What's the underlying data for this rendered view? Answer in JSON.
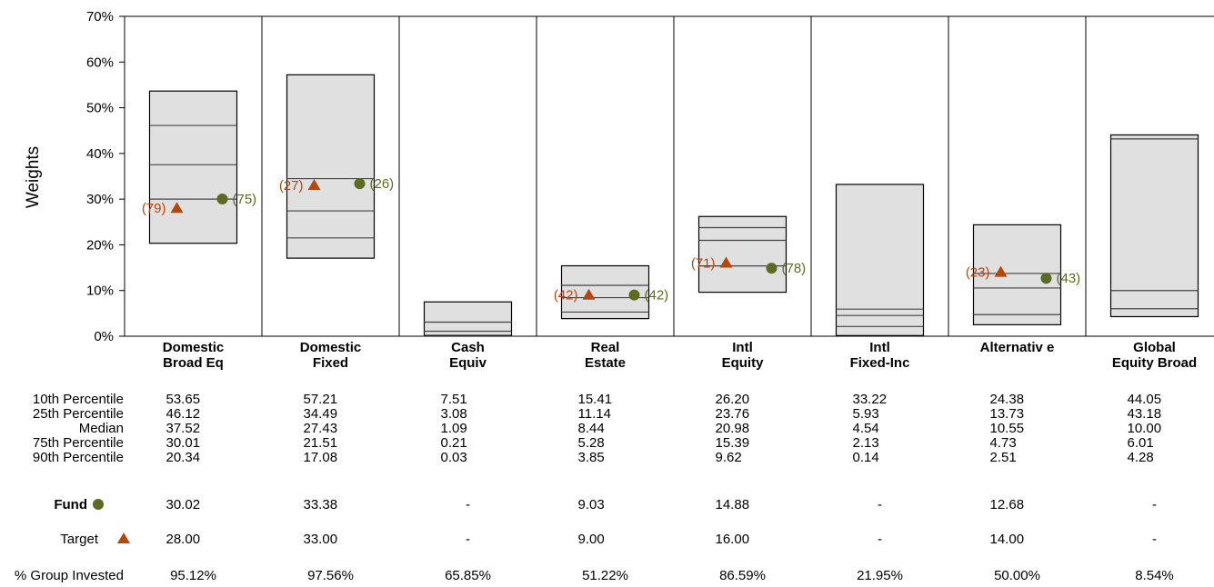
{
  "chart_data": {
    "type": "box",
    "ylabel": "Weights",
    "ylim": [
      0,
      70
    ],
    "ytick_step": 10,
    "ytick_suffix": "%",
    "grid": false,
    "categories": [
      {
        "line1": "Domestic",
        "line2": "Broad Eq"
      },
      {
        "line1": "Domestic",
        "line2": "Fixed"
      },
      {
        "line1": "Cash",
        "line2": "Equiv"
      },
      {
        "line1": "Real",
        "line2": "Estate"
      },
      {
        "line1": "Intl",
        "line2": "Equity"
      },
      {
        "line1": "Intl",
        "line2": "Fixed-Inc"
      },
      {
        "line1": "Alternativ e",
        "line2": ""
      },
      {
        "line1": "Global",
        "line2": "Equity Broad"
      }
    ],
    "percentiles": [
      {
        "label": "10th Percentile",
        "values": [
          53.65,
          57.21,
          7.51,
          15.41,
          26.2,
          33.22,
          24.38,
          44.05
        ],
        "display": [
          "53.65",
          "57.21",
          "7.51",
          "15.41",
          "26.20",
          "33.22",
          "24.38",
          "44.05"
        ]
      },
      {
        "label": "25th Percentile",
        "values": [
          46.12,
          34.49,
          3.08,
          11.14,
          23.76,
          5.93,
          13.73,
          43.18
        ],
        "display": [
          "46.12",
          "34.49",
          "3.08",
          "11.14",
          "23.76",
          "5.93",
          "13.73",
          "43.18"
        ]
      },
      {
        "label": "Median",
        "values": [
          37.52,
          27.43,
          1.09,
          8.44,
          20.98,
          4.54,
          10.55,
          10.0
        ],
        "display": [
          "37.52",
          "27.43",
          "1.09",
          "8.44",
          "20.98",
          "4.54",
          "10.55",
          "10.00"
        ]
      },
      {
        "label": "75th Percentile",
        "values": [
          30.01,
          21.51,
          0.21,
          5.28,
          15.39,
          2.13,
          4.73,
          6.01
        ],
        "display": [
          "30.01",
          "21.51",
          "0.21",
          "5.28",
          "15.39",
          "2.13",
          "4.73",
          "6.01"
        ]
      },
      {
        "label": "90th Percentile",
        "values": [
          20.34,
          17.08,
          0.03,
          3.85,
          9.62,
          0.14,
          2.51,
          4.28
        ],
        "display": [
          "20.34",
          "17.08",
          "0.03",
          "3.85",
          "9.62",
          "0.14",
          "2.51",
          "4.28"
        ]
      }
    ],
    "series": [
      {
        "name": "Fund",
        "marker": "circle",
        "color": "#5b6b22",
        "values": [
          30.02,
          33.38,
          null,
          9.03,
          14.88,
          null,
          12.68,
          null
        ],
        "display": [
          "30.02",
          "33.38",
          "-",
          "9.03",
          "14.88",
          "-",
          "12.68",
          "-"
        ],
        "ranks": [
          "(75)",
          "(26)",
          null,
          "(42)",
          "(78)",
          null,
          "(43)",
          null
        ]
      },
      {
        "name": "Target",
        "marker": "triangle",
        "color": "#b5470b",
        "values": [
          28.0,
          33.0,
          null,
          9.0,
          16.0,
          null,
          14.0,
          null
        ],
        "display": [
          "28.00",
          "33.00",
          "-",
          "9.00",
          "16.00",
          "-",
          "14.00",
          "-"
        ],
        "ranks": [
          "(79)",
          "(27)",
          null,
          "(42)",
          "(71)",
          null,
          "(23)",
          null
        ]
      }
    ],
    "group_invested": {
      "label": "% Group Invested",
      "values": [
        "95.12%",
        "97.56%",
        "65.85%",
        "51.22%",
        "86.59%",
        "21.95%",
        "50.00%",
        "8.54%"
      ]
    },
    "colors": {
      "box_fill": "#e0e0e0",
      "box_stroke": "#000000",
      "median_line": "#444444"
    }
  }
}
